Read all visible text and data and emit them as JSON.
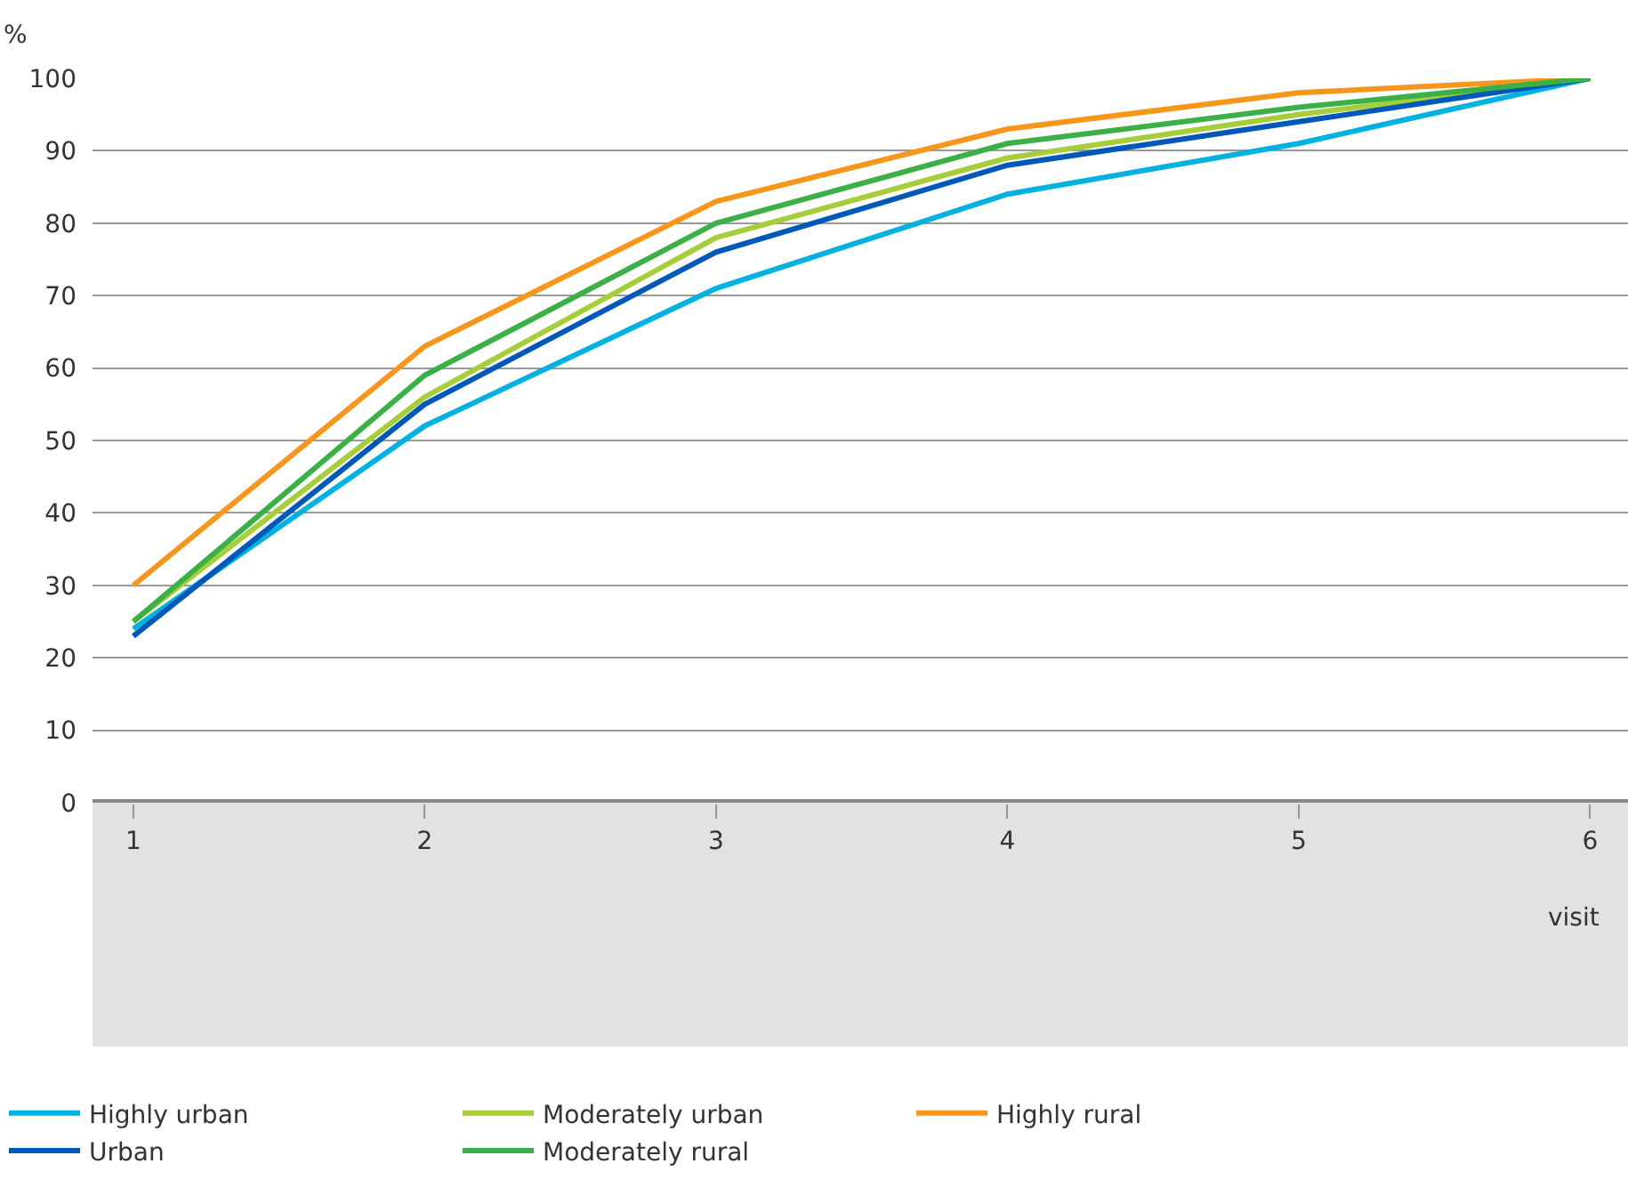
{
  "chart_data": {
    "type": "line",
    "ylabel": "%",
    "xlabel": "visit",
    "x": [
      1,
      2,
      3,
      4,
      5,
      6
    ],
    "xlim": [
      0.86,
      6.13
    ],
    "xticks": [
      1,
      2,
      3,
      4,
      5,
      6
    ],
    "ylim": [
      0,
      100
    ],
    "yticks": [
      0,
      10,
      20,
      30,
      40,
      50,
      60,
      70,
      80,
      90,
      100
    ],
    "grid": "y",
    "legend": "bottom",
    "marker": "none",
    "line_style": "solid",
    "series": [
      {
        "name": "Highly urban",
        "color": "#00b1e1",
        "values": [
          24,
          52,
          71,
          84,
          91,
          100
        ]
      },
      {
        "name": "Moderately urban",
        "color": "#a6cd3a",
        "values": [
          25,
          56,
          78,
          89,
          95,
          100
        ]
      },
      {
        "name": "Highly rural",
        "color": "#f7961d",
        "values": [
          30,
          63,
          83,
          93,
          98,
          100
        ]
      },
      {
        "name": "Urban",
        "color": "#0058b8",
        "values": [
          23,
          55,
          76,
          88,
          94,
          100
        ]
      },
      {
        "name": "Moderately rural",
        "color": "#3ab047",
        "values": [
          25,
          59,
          80,
          91,
          96,
          100
        ]
      }
    ]
  }
}
